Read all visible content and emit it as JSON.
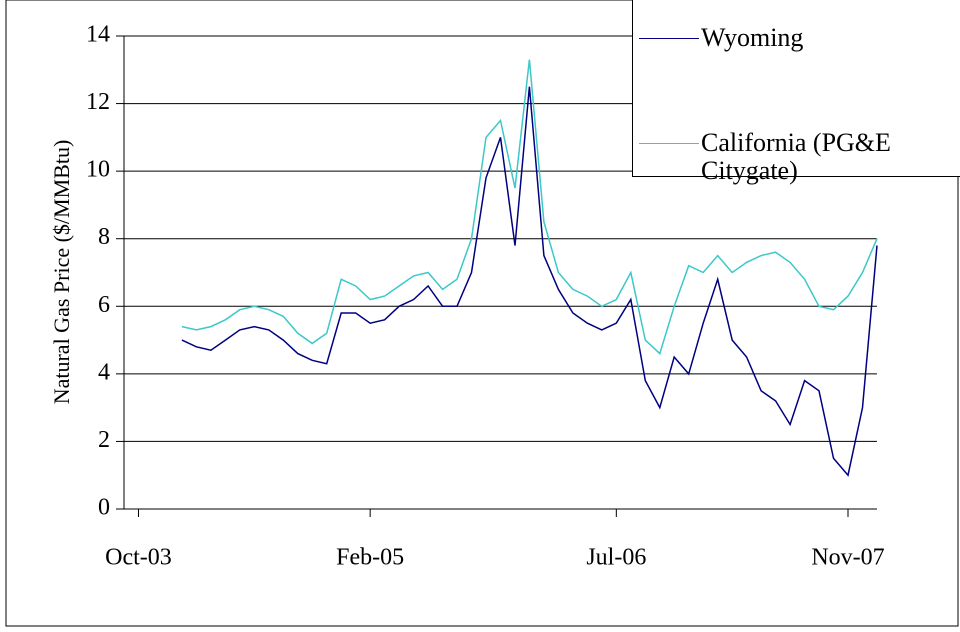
{
  "chart_data": {
    "type": "line",
    "y_label": "Natural Gas Price ($/MMBtu)",
    "x": [
      "2004-01",
      "2004-02",
      "2004-03",
      "2004-04",
      "2004-05",
      "2004-06",
      "2004-07",
      "2004-08",
      "2004-09",
      "2004-10",
      "2004-11",
      "2004-12",
      "2005-01",
      "2005-02",
      "2005-03",
      "2005-04",
      "2005-05",
      "2005-06",
      "2005-07",
      "2005-08",
      "2005-09",
      "2005-10",
      "2005-11",
      "2005-12",
      "2006-01",
      "2006-02",
      "2006-03",
      "2006-04",
      "2006-05",
      "2006-06",
      "2006-07",
      "2006-08",
      "2006-09",
      "2006-10",
      "2006-11",
      "2006-12",
      "2007-01",
      "2007-02",
      "2007-03",
      "2007-04",
      "2007-05",
      "2007-06",
      "2007-07",
      "2007-08",
      "2007-09",
      "2007-10",
      "2007-11",
      "2007-12",
      "2008-01"
    ],
    "series": [
      {
        "name": "Wyoming",
        "color": "#000080",
        "values": [
          5.0,
          4.8,
          4.7,
          5.0,
          5.3,
          5.4,
          5.3,
          5.0,
          4.6,
          4.4,
          4.3,
          5.8,
          5.8,
          5.5,
          5.6,
          6.0,
          6.2,
          6.6,
          6.0,
          6.0,
          7.0,
          9.8,
          11.0,
          7.8,
          12.5,
          7.5,
          6.5,
          5.8,
          5.5,
          5.3,
          5.5,
          6.2,
          3.8,
          3.0,
          4.5,
          4.0,
          5.5,
          6.8,
          5.0,
          4.5,
          3.5,
          3.2,
          2.5,
          3.8,
          3.5,
          1.5,
          1.0,
          3.0,
          7.8
        ]
      },
      {
        "name": "California (PG&E Citygate)",
        "color": "#3cc8c8",
        "values": [
          5.4,
          5.3,
          5.4,
          5.6,
          5.9,
          6.0,
          5.9,
          5.7,
          5.2,
          4.9,
          5.2,
          6.8,
          6.6,
          6.2,
          6.3,
          6.6,
          6.9,
          7.0,
          6.5,
          6.8,
          8.0,
          11.0,
          11.5,
          9.5,
          13.3,
          8.5,
          7.0,
          6.5,
          6.3,
          6.0,
          6.2,
          7.0,
          5.0,
          4.6,
          6.0,
          7.2,
          7.0,
          7.5,
          7.0,
          7.3,
          7.5,
          7.6,
          7.3,
          6.8,
          6.0,
          5.9,
          6.3,
          7.0,
          8.0
        ]
      }
    ],
    "xlim": [
      "2003-09",
      "2008-01"
    ],
    "xticks": [
      {
        "value": "2003-10",
        "label": "Oct-03"
      },
      {
        "value": "2005-02",
        "label": "Feb-05"
      },
      {
        "value": "2006-07",
        "label": "Jul-06"
      },
      {
        "value": "2007-11",
        "label": "Nov-07"
      }
    ],
    "ylim": [
      0,
      14
    ],
    "yticks": [
      0,
      2,
      4,
      6,
      8,
      10,
      12,
      14
    ],
    "grid": true
  }
}
